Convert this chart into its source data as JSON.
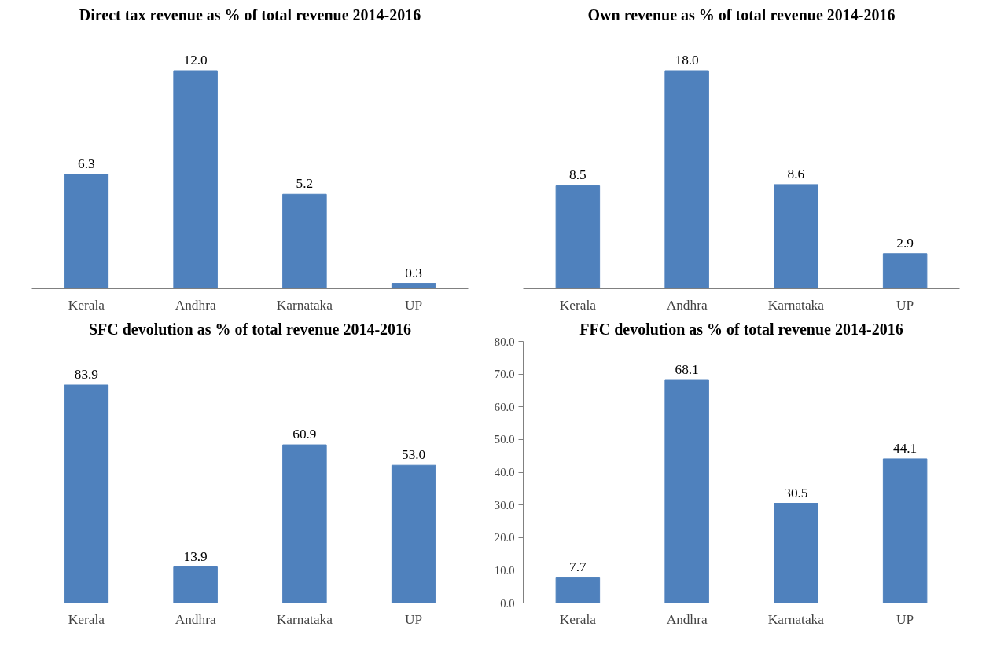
{
  "chart_data": [
    {
      "type": "bar",
      "title": "Direct tax revenue as % of total revenue 2014-2016",
      "categories": [
        "Kerala",
        "Andhra",
        "Karnataka",
        "UP"
      ],
      "values": [
        6.3,
        12.0,
        5.2,
        0.3
      ],
      "value_labels": [
        "6.3",
        "12.0",
        "5.2",
        "0.3"
      ],
      "color": "#4f81bd",
      "tick_labels": "x"
    },
    {
      "type": "bar",
      "title": "Own revenue as % of total revenue 2014-2016",
      "categories": [
        "Kerala",
        "Andhra",
        "Karnataka",
        "UP"
      ],
      "values": [
        8.5,
        18.0,
        8.6,
        2.9
      ],
      "value_labels": [
        "8.5",
        "18.0",
        "8.6",
        "2.9"
      ],
      "color": "#4f81bd",
      "tick_labels": "x"
    },
    {
      "type": "bar",
      "title": "SFC devolution as % of total revenue 2014-2016",
      "categories": [
        "Kerala",
        "Andhra",
        "Karnataka",
        "UP"
      ],
      "values": [
        83.9,
        13.9,
        60.9,
        53.0
      ],
      "value_labels": [
        "83.9",
        "13.9",
        "60.9",
        "53.0"
      ],
      "color": "#4f81bd",
      "tick_labels": "x"
    },
    {
      "type": "bar",
      "title": "FFC devolution as % of total revenue 2014-2016",
      "categories": [
        "Kerala",
        "Andhra",
        "Karnataka",
        "UP"
      ],
      "values": [
        7.7,
        68.1,
        30.5,
        44.1
      ],
      "value_labels": [
        "7.7",
        "68.1",
        "30.5",
        "44.1"
      ],
      "color": "#4f81bd",
      "ylim": [
        0,
        80
      ],
      "yticks": [
        {
          "value": 0,
          "label": "0.0"
        },
        {
          "value": 10,
          "label": "10.0"
        },
        {
          "value": 20,
          "label": "20.0"
        },
        {
          "value": 30,
          "label": "30.0"
        },
        {
          "value": 40,
          "label": "40.0"
        },
        {
          "value": 50,
          "label": "50.0"
        },
        {
          "value": 60,
          "label": "60.0"
        },
        {
          "value": 70,
          "label": "70.0"
        },
        {
          "value": 80,
          "label": "80.0"
        }
      ]
    }
  ]
}
